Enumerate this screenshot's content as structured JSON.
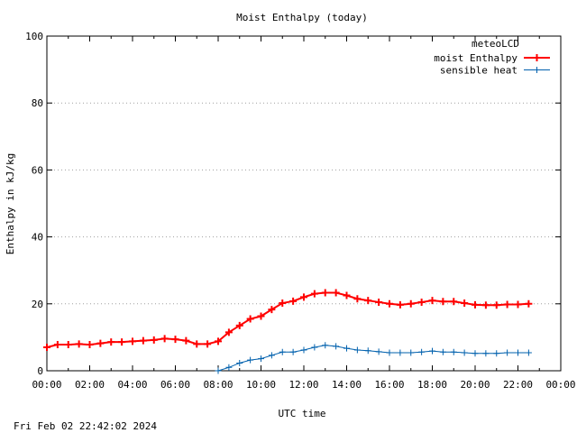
{
  "chart_data": {
    "type": "line",
    "title": "Moist Enthalpy (today)",
    "xlabel": "UTC time",
    "ylabel": "Enthalpy in kJ/kg",
    "xlim": [
      0,
      24
    ],
    "ylim": [
      0,
      100
    ],
    "yticks": [
      0,
      20,
      40,
      60,
      80,
      100
    ],
    "xtick_labels": [
      "00:00",
      "02:00",
      "04:00",
      "06:00",
      "08:00",
      "10:00",
      "12:00",
      "14:00",
      "16:00",
      "18:00",
      "20:00",
      "22:00",
      "00:00"
    ],
    "grid": "horizontal dotted",
    "legend_title": "meteoLCD",
    "legend_position": "top-right",
    "timestamp": "Fri Feb 02 22:42:02 2024",
    "series": [
      {
        "name": "moist Enthalpy",
        "color": "#ff0000",
        "x": [
          0,
          0.5,
          1,
          1.5,
          2,
          2.5,
          3,
          3.5,
          4,
          4.5,
          5,
          5.5,
          6,
          6.5,
          7,
          7.5,
          8,
          8.5,
          9,
          9.5,
          10,
          10.5,
          11,
          11.5,
          12,
          12.5,
          13,
          13.5,
          14,
          14.5,
          15,
          15.5,
          16,
          16.5,
          17,
          17.5,
          18,
          18.5,
          19,
          19.5,
          20,
          20.5,
          21,
          21.5,
          22,
          22.5
        ],
        "values": [
          7,
          7.8,
          7.8,
          8,
          7.8,
          8.2,
          8.6,
          8.6,
          8.8,
          9,
          9.2,
          9.6,
          9.4,
          9,
          8,
          8,
          8.8,
          11.5,
          13.5,
          15.5,
          16.3,
          18.3,
          20.2,
          20.8,
          22,
          23,
          23.3,
          23.3,
          22.5,
          21.5,
          21,
          20.5,
          20,
          19.7,
          20,
          20.5,
          21,
          20.7,
          20.7,
          20.2,
          19.7,
          19.6,
          19.6,
          19.8,
          19.8,
          20
        ]
      },
      {
        "name": "sensible heat",
        "color": "#0060ad",
        "x": [
          8,
          8.5,
          9,
          9.5,
          10,
          10.5,
          11,
          11.5,
          12,
          12.5,
          13,
          13.5,
          14,
          14.5,
          15,
          15.5,
          16,
          16.5,
          17,
          17.5,
          18,
          18.5,
          19,
          19.5,
          20,
          20.5,
          21,
          21.5,
          22,
          22.5
        ],
        "values": [
          0,
          1,
          2.3,
          3.2,
          3.6,
          4.6,
          5.6,
          5.6,
          6.2,
          7,
          7.6,
          7.3,
          6.7,
          6.2,
          6,
          5.7,
          5.4,
          5.4,
          5.4,
          5.6,
          5.9,
          5.6,
          5.6,
          5.4,
          5.2,
          5.2,
          5.2,
          5.4,
          5.4,
          5.4
        ]
      }
    ]
  }
}
